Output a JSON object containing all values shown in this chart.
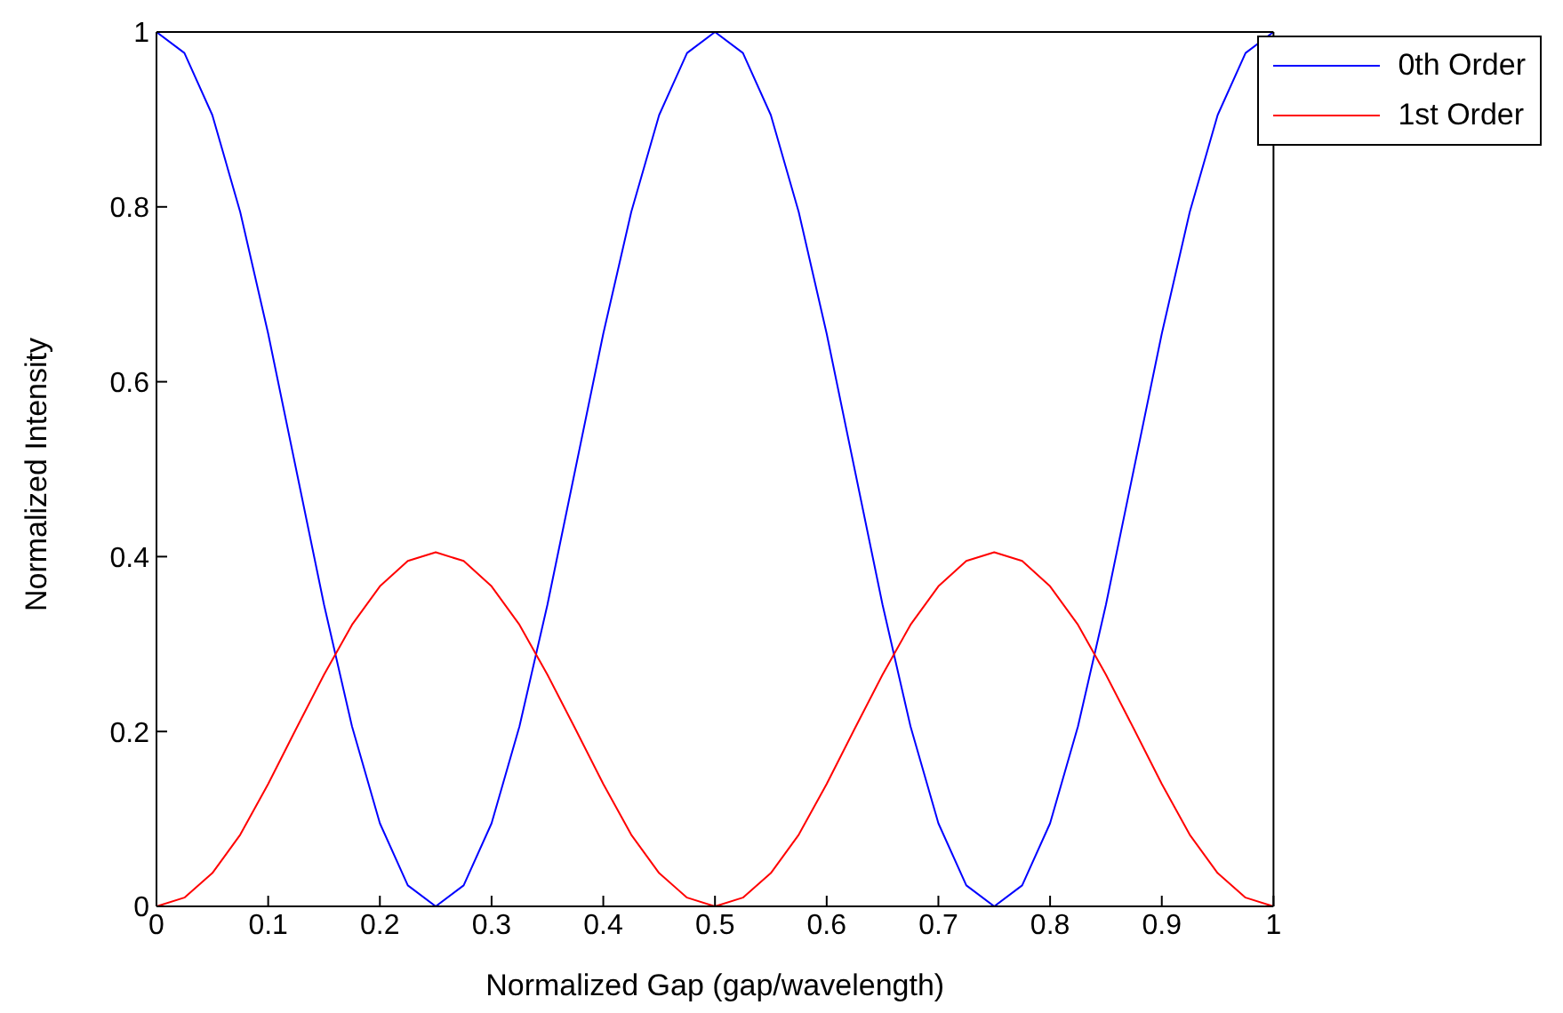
{
  "chart_data": {
    "type": "line",
    "xlabel": "Normalized Gap (gap/wavelength)",
    "ylabel": "Normalized Intensity",
    "x": [
      0,
      0.025,
      0.05,
      0.075,
      0.1,
      0.125,
      0.15,
      0.175,
      0.2,
      0.225,
      0.25,
      0.275,
      0.3,
      0.325,
      0.35,
      0.375,
      0.4,
      0.425,
      0.45,
      0.475,
      0.5,
      0.525,
      0.55,
      0.575,
      0.6,
      0.625,
      0.65,
      0.675,
      0.7,
      0.725,
      0.75,
      0.775,
      0.8,
      0.825,
      0.85,
      0.875,
      0.9,
      0.925,
      0.95,
      0.975,
      1
    ],
    "series": [
      {
        "name": "0th Order",
        "color": "#0000ff",
        "values": [
          1,
          0.976,
          0.905,
          0.794,
          0.655,
          0.5,
          0.345,
          0.206,
          0.095,
          0.024,
          0,
          0.024,
          0.095,
          0.206,
          0.345,
          0.5,
          0.655,
          0.794,
          0.905,
          0.976,
          1,
          0.976,
          0.905,
          0.794,
          0.655,
          0.5,
          0.345,
          0.206,
          0.095,
          0.024,
          0,
          0.024,
          0.095,
          0.206,
          0.345,
          0.5,
          0.655,
          0.794,
          0.905,
          0.976,
          1
        ]
      },
      {
        "name": "1st Order",
        "color": "#ff0000",
        "values": [
          0,
          0.01,
          0.038,
          0.082,
          0.14,
          0.203,
          0.265,
          0.322,
          0.366,
          0.395,
          0.405,
          0.395,
          0.366,
          0.322,
          0.265,
          0.203,
          0.14,
          0.082,
          0.038,
          0.01,
          0,
          0.01,
          0.038,
          0.082,
          0.14,
          0.203,
          0.265,
          0.322,
          0.366,
          0.395,
          0.405,
          0.395,
          0.366,
          0.322,
          0.265,
          0.203,
          0.14,
          0.082,
          0.038,
          0.01,
          0
        ]
      }
    ],
    "xlim": [
      0,
      1
    ],
    "xticks": [
      0,
      0.1,
      0.2,
      0.3,
      0.4,
      0.5,
      0.6,
      0.7,
      0.8,
      0.9,
      1
    ],
    "ylim": [
      0,
      1
    ],
    "yticks": [
      0,
      0.2,
      0.4,
      0.6,
      0.8,
      1
    ],
    "grid": false,
    "legend": "top right",
    "marker": "none",
    "line_style": "solid"
  }
}
